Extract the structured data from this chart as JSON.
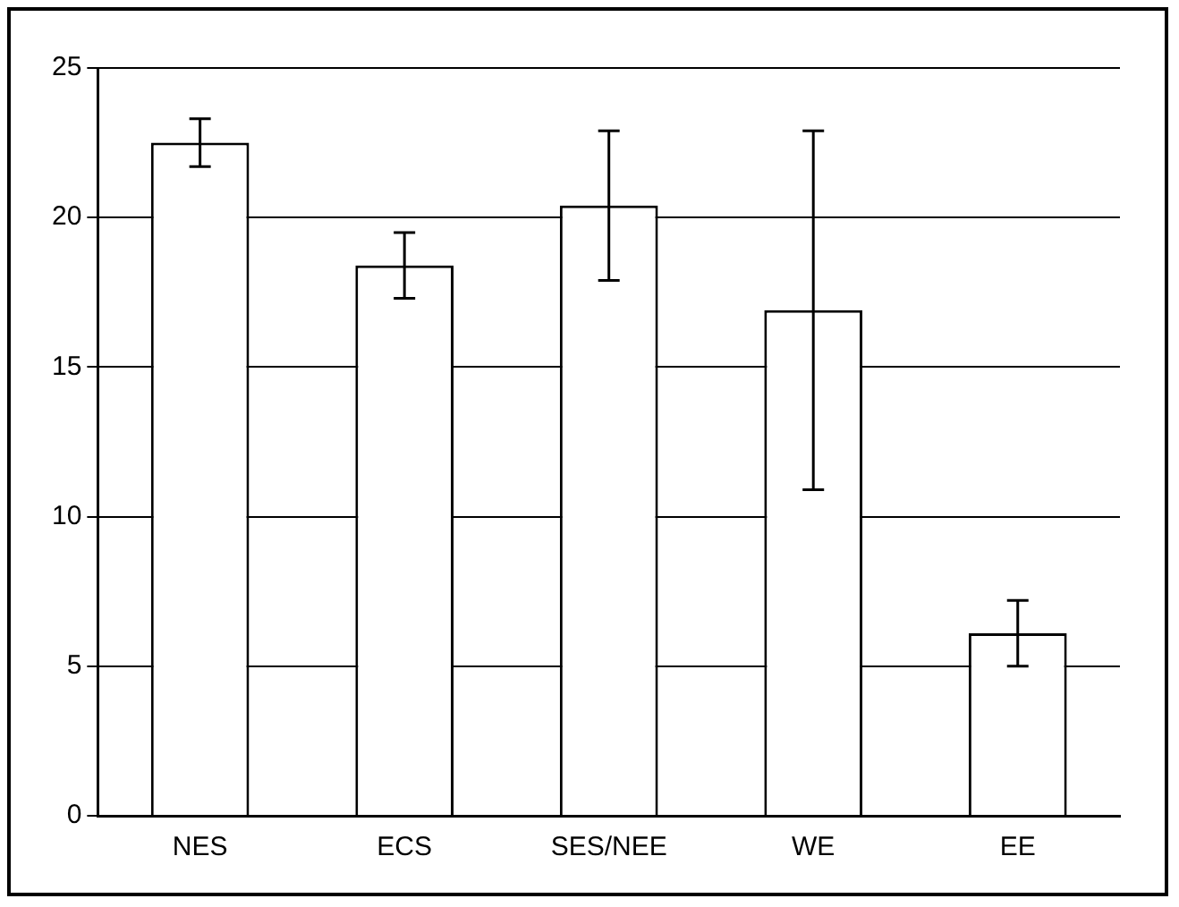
{
  "chart_data": {
    "type": "bar",
    "categories": [
      "NES",
      "ECS",
      "SES/NEE",
      "WE",
      "EE"
    ],
    "values": [
      22.5,
      18.4,
      20.4,
      16.9,
      6.1
    ],
    "errors": [
      0.8,
      1.1,
      2.5,
      6,
      1.1
    ],
    "color": "#ffffff",
    "ylim": [
      0,
      25
    ],
    "yticks": [
      0,
      5,
      10,
      15,
      20,
      25
    ],
    "grid": "y",
    "legend": false
  }
}
